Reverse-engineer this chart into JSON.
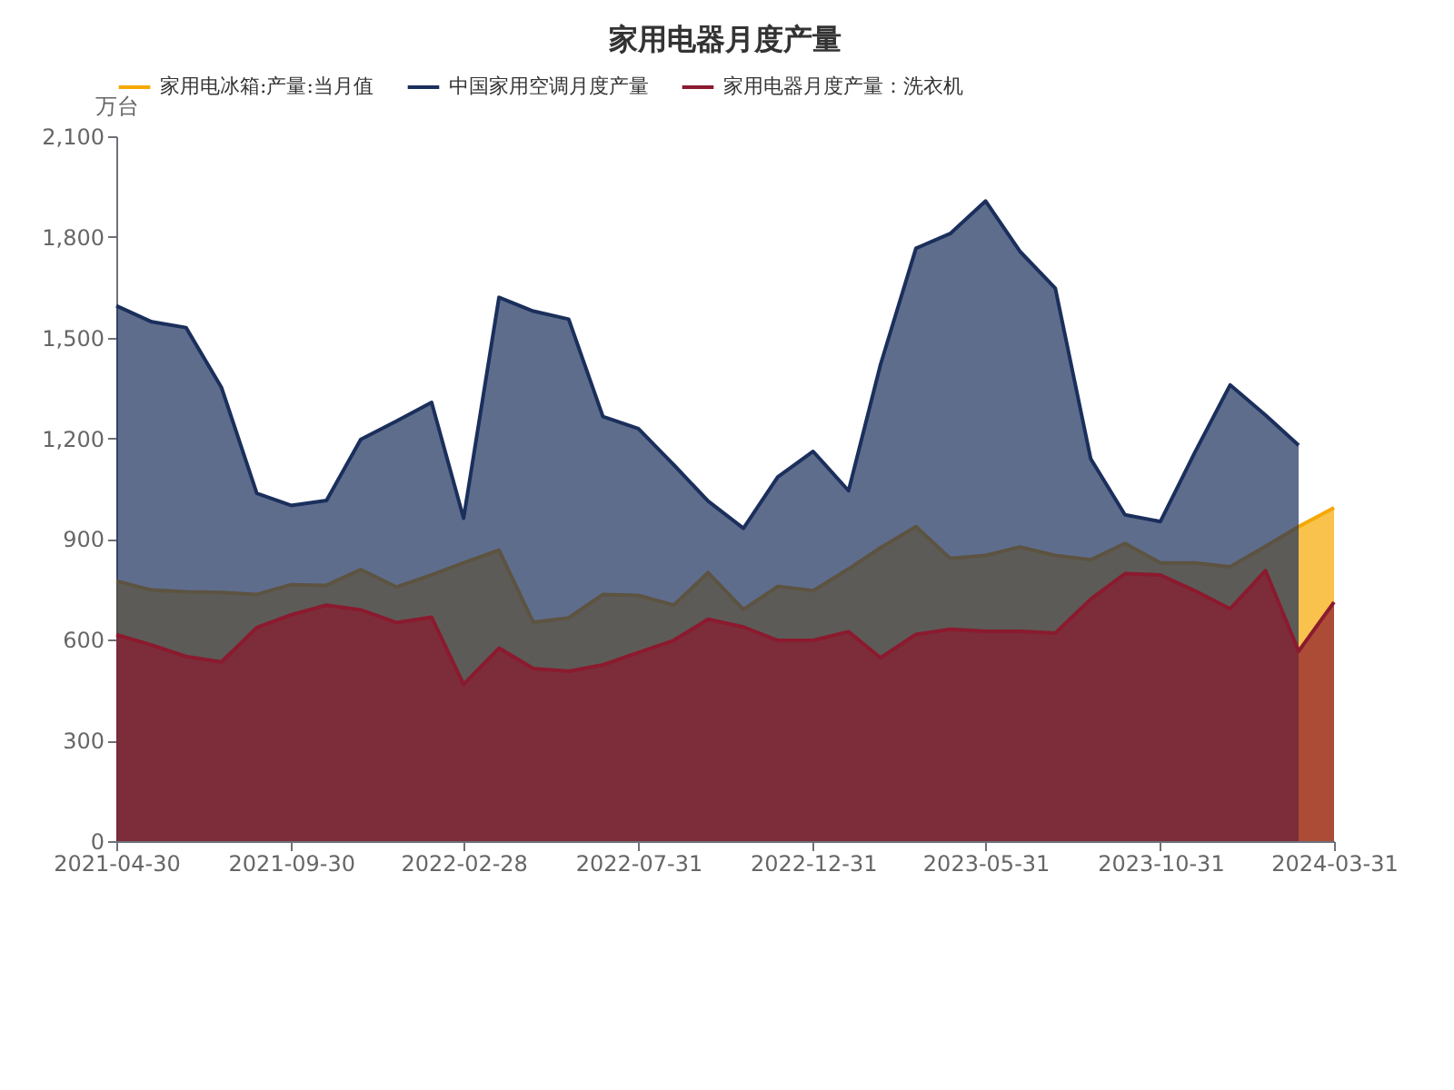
{
  "chart_data": {
    "type": "area",
    "title": "家用电器月度产量",
    "ylabel": "万台",
    "x": [
      "2021-04-30",
      "2021-05-31",
      "2021-06-30",
      "2021-07-31",
      "2021-08-31",
      "2021-09-30",
      "2021-10-31",
      "2021-11-30",
      "2021-12-31",
      "2022-01-31",
      "2022-02-28",
      "2022-03-31",
      "2022-04-30",
      "2022-05-31",
      "2022-06-30",
      "2022-07-31",
      "2022-08-31",
      "2022-09-30",
      "2022-10-31",
      "2022-11-30",
      "2022-12-31",
      "2023-01-31",
      "2023-02-28",
      "2023-03-31",
      "2023-04-30",
      "2023-05-31",
      "2023-06-30",
      "2023-07-31",
      "2023-08-31",
      "2023-09-30",
      "2023-10-31",
      "2023-11-30",
      "2023-12-31",
      "2024-01-31",
      "2024-02-29",
      "2024-03-31"
    ],
    "series": [
      {
        "name": "家用电冰箱:产量:当月值",
        "color": "#f5a800",
        "values": [
          775,
          748,
          743,
          741,
          735,
          764,
          762,
          809,
          757,
          793,
          829,
          867,
          652,
          665,
          735,
          732,
          703,
          800,
          690,
          759,
          746,
          811,
          874,
          937,
          842,
          851,
          876,
          851,
          838,
          887,
          829,
          829,
          817,
          878,
          937,
          993
        ]
      },
      {
        "name": "中国家用空调月度产量",
        "color": "#1b2f5c",
        "values": [
          1595,
          1547,
          1530,
          1352,
          1036,
          1000,
          1015,
          1197,
          1251,
          1307,
          962,
          1620,
          1579,
          1555,
          1265,
          1229,
          1121,
          1013,
          932,
          1085,
          1161,
          1044,
          1420,
          1766,
          1810,
          1907,
          1757,
          1647,
          1139,
          972,
          952,
          1157,
          1359,
          1269,
          1179,
          null
        ]
      },
      {
        "name": "家用电器月度产量：洗衣机",
        "color": "#8b1a2e",
        "values": [
          615,
          584,
          550,
          534,
          636,
          674,
          703,
          689,
          651,
          667,
          467,
          575,
          514,
          506,
          525,
          562,
          598,
          661,
          638,
          598,
          598,
          624,
          546,
          616,
          631,
          625,
          625,
          620,
          721,
          797,
          793,
          746,
          692,
          806,
          566,
          712
        ]
      }
    ],
    "xlim": [
      "2021-04-30",
      "2024-03-31"
    ],
    "xticks": [
      "2021-04-30",
      "2021-09-30",
      "2022-02-28",
      "2022-07-31",
      "2022-12-31",
      "2023-05-31",
      "2023-10-31",
      "2024-03-31"
    ],
    "ylim": [
      0,
      2100
    ],
    "yticks": [
      0,
      300,
      600,
      900,
      {
        "value": 1200,
        "label": "1,200"
      },
      {
        "value": 1500,
        "label": "1,500"
      },
      {
        "value": 1800,
        "label": "1,800"
      },
      {
        "value": 2100,
        "label": "2,100"
      }
    ],
    "legend": "top"
  }
}
